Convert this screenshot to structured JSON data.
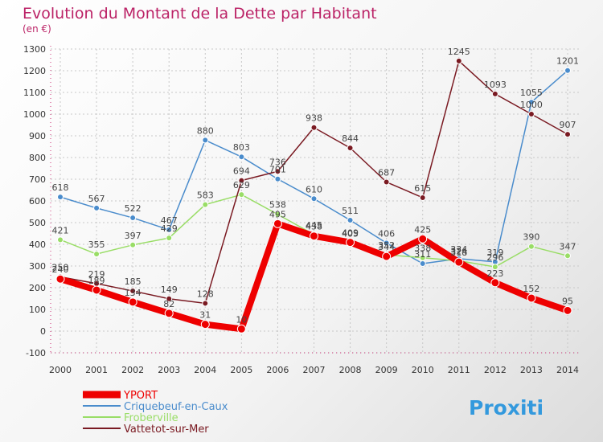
{
  "chart_data": {
    "type": "line",
    "title": "Evolution du Montant de la Dette par Habitant",
    "subtitle": "(en €)",
    "x": [
      "2000",
      "2001",
      "2002",
      "2003",
      "2004",
      "2005",
      "2006",
      "2007",
      "2008",
      "2009",
      "2010",
      "2011",
      "2012",
      "2013",
      "2014"
    ],
    "ylim": [
      -100,
      1300
    ],
    "yticks": [
      -100,
      0,
      100,
      200,
      300,
      400,
      500,
      600,
      700,
      800,
      900,
      1000,
      1100,
      1200,
      1300
    ],
    "grid": true,
    "legend_position": "bottom-left",
    "series": [
      {
        "name": "YPORT",
        "color": "#ee0000",
        "values": [
          240,
          189,
          134,
          82,
          31,
          10,
          495,
          438,
          409,
          344,
          425,
          318,
          223,
          152,
          95
        ],
        "labels": [
          "240",
          "189",
          "134",
          "82",
          "31",
          "10",
          "495",
          "438",
          "409",
          "344",
          "425",
          "318",
          "223",
          "152",
          "95"
        ]
      },
      {
        "name": "Criquebeuf-en-Caux",
        "color": "#4a8ccc",
        "values": [
          618,
          567,
          522,
          467,
          880,
          803,
          701,
          610,
          511,
          406,
          311,
          334,
          319,
          1055,
          1201
        ],
        "labels": [
          "618",
          "567",
          "522",
          "467",
          "880",
          "803",
          "701",
          "610",
          "511",
          "406",
          "311",
          "334",
          "319",
          "1055",
          "1201"
        ]
      },
      {
        "name": "Froberville",
        "color": "#99dd66",
        "values": [
          421,
          355,
          397,
          429,
          583,
          629,
          538,
          445,
          405,
          352,
          338,
          324,
          296,
          390,
          347
        ],
        "labels": [
          "421",
          "355",
          "397",
          "429",
          "583",
          "629",
          "538",
          "445",
          "405",
          "352",
          "338",
          "324",
          "296",
          "390",
          "347"
        ]
      },
      {
        "name": "Vattetot-sur-Mer",
        "color": "#7a1a22",
        "values": [
          250,
          219,
          185,
          149,
          128,
          694,
          736,
          938,
          844,
          687,
          615,
          1245,
          1093,
          1000,
          907
        ],
        "labels": [
          "250",
          "219",
          "185",
          "149",
          "128",
          "694",
          "736",
          "938",
          "844",
          "687",
          "615",
          "1245",
          "1093",
          "1000",
          "907"
        ]
      }
    ]
  },
  "brand": {
    "text": "Proxiti"
  }
}
